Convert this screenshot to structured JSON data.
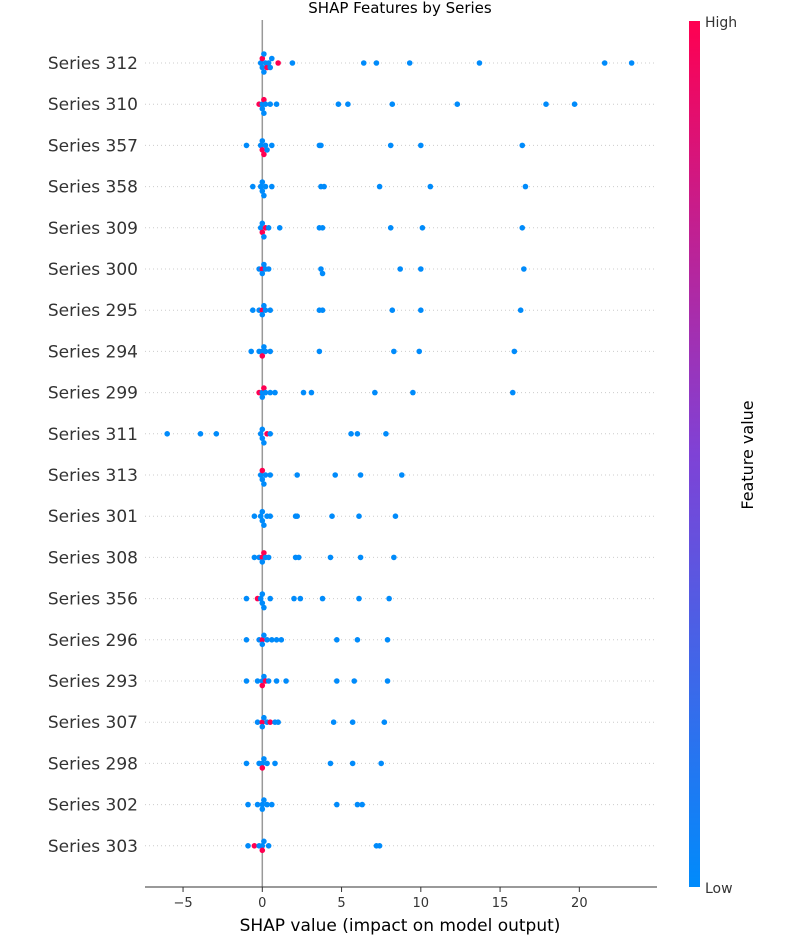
{
  "chart_data": {
    "type": "scatter",
    "title": "SHAP Features by Series",
    "xlabel": "SHAP value (impact on model output)",
    "ylabel": "",
    "xlim": [
      -7.4,
      24.9
    ],
    "xticks": [
      -5,
      0,
      5,
      10,
      15,
      20
    ],
    "xtick_labels": [
      "−5",
      "0",
      "5",
      "10",
      "15",
      "20"
    ],
    "colorbar": {
      "title": "Feature value",
      "high_label": "High",
      "low_label": "Low",
      "high_color": "#ff0051",
      "low_color": "#008bfb"
    },
    "series": [
      {
        "name": "Series 312",
        "values": [
          -0.1,
          0.0,
          0.0,
          0.1,
          0.1,
          0.2,
          0.3,
          0.4,
          0.5,
          0.6,
          1.0,
          1.9,
          6.4,
          7.2,
          9.3,
          13.7,
          21.6,
          23.3
        ],
        "high_flags": [
          0,
          0,
          1,
          0,
          0,
          0,
          1,
          0,
          0,
          0,
          1,
          0,
          0,
          0,
          0,
          0,
          0,
          0
        ]
      },
      {
        "name": "Series 310",
        "values": [
          -0.2,
          0.0,
          0.0,
          0.1,
          0.1,
          0.2,
          0.5,
          0.9,
          4.8,
          5.4,
          8.2,
          12.3,
          17.9,
          19.7
        ],
        "high_flags": [
          1,
          0,
          0,
          1,
          0,
          0,
          0,
          0,
          0,
          0,
          0,
          0,
          0,
          0
        ]
      },
      {
        "name": "Series 357",
        "values": [
          -1.0,
          -0.1,
          0.0,
          0.0,
          0.1,
          0.2,
          0.3,
          0.6,
          3.6,
          3.7,
          8.1,
          10.0,
          16.4
        ],
        "high_flags": [
          0,
          0,
          1,
          0,
          1,
          0,
          0,
          0,
          0,
          0,
          0,
          0,
          0
        ]
      },
      {
        "name": "Series 358",
        "values": [
          -0.6,
          -0.1,
          0.0,
          0.0,
          0.1,
          0.2,
          0.6,
          3.7,
          3.9,
          7.4,
          10.6,
          16.6
        ],
        "high_flags": [
          0,
          0,
          0,
          0,
          0,
          0,
          0,
          0,
          0,
          0,
          0,
          0
        ]
      },
      {
        "name": "Series 309",
        "values": [
          -0.1,
          0.0,
          0.0,
          0.1,
          0.2,
          0.4,
          1.1,
          3.6,
          3.8,
          8.1,
          10.1,
          16.4
        ],
        "high_flags": [
          0,
          1,
          0,
          0,
          1,
          0,
          0,
          0,
          0,
          0,
          0,
          0
        ]
      },
      {
        "name": "Series 300",
        "values": [
          -0.2,
          0.0,
          0.0,
          0.1,
          0.2,
          0.4,
          3.7,
          3.8,
          8.7,
          10.0,
          16.5
        ],
        "high_flags": [
          0,
          1,
          0,
          0,
          0,
          0,
          0,
          0,
          0,
          0,
          0
        ]
      },
      {
        "name": "Series 295",
        "values": [
          -0.6,
          -0.2,
          0.0,
          0.0,
          0.1,
          0.2,
          0.5,
          3.6,
          3.8,
          8.2,
          10.0,
          16.3
        ],
        "high_flags": [
          0,
          0,
          1,
          0,
          0,
          0,
          0,
          0,
          0,
          0,
          0,
          0
        ]
      },
      {
        "name": "Series 294",
        "values": [
          -0.7,
          -0.2,
          0.0,
          0.0,
          0.1,
          0.2,
          0.5,
          3.6,
          8.3,
          9.9,
          15.9
        ],
        "high_flags": [
          0,
          0,
          0,
          1,
          0,
          0,
          0,
          0,
          0,
          0,
          0
        ]
      },
      {
        "name": "Series 299",
        "values": [
          -0.2,
          0.0,
          0.0,
          0.1,
          0.2,
          0.5,
          0.8,
          2.6,
          3.1,
          7.1,
          9.5,
          15.8
        ],
        "high_flags": [
          1,
          0,
          0,
          1,
          0,
          0,
          0,
          0,
          0,
          0,
          0,
          0
        ]
      },
      {
        "name": "Series 311",
        "values": [
          -6.0,
          -3.9,
          -2.9,
          -0.1,
          0.0,
          0.0,
          0.1,
          0.3,
          0.5,
          5.6,
          6.0,
          7.8
        ],
        "high_flags": [
          0,
          0,
          0,
          0,
          0,
          0,
          0,
          1,
          0,
          0,
          0,
          0
        ]
      },
      {
        "name": "Series 313",
        "values": [
          -0.1,
          0.0,
          0.0,
          0.1,
          0.2,
          0.5,
          2.2,
          4.6,
          6.2,
          8.8
        ],
        "high_flags": [
          0,
          0,
          1,
          0,
          0,
          0,
          0,
          0,
          0,
          0
        ]
      },
      {
        "name": "Series 301",
        "values": [
          -0.5,
          -0.1,
          0.0,
          0.0,
          0.1,
          0.3,
          0.5,
          2.1,
          2.2,
          4.4,
          6.1,
          8.4
        ],
        "high_flags": [
          0,
          0,
          0,
          0,
          0,
          0,
          0,
          0,
          0,
          0,
          0,
          0
        ]
      },
      {
        "name": "Series 308",
        "values": [
          -0.5,
          -0.2,
          0.0,
          0.0,
          0.1,
          0.2,
          0.4,
          2.1,
          2.3,
          4.3,
          6.2,
          8.3
        ],
        "high_flags": [
          0,
          0,
          1,
          0,
          1,
          0,
          0,
          0,
          0,
          0,
          0,
          0
        ]
      },
      {
        "name": "Series 356",
        "values": [
          -1.0,
          -0.3,
          -0.1,
          0.0,
          0.0,
          0.1,
          0.5,
          2.0,
          2.4,
          3.8,
          6.1,
          8.0
        ],
        "high_flags": [
          0,
          1,
          0,
          0,
          0,
          0,
          0,
          0,
          0,
          0,
          0,
          0
        ]
      },
      {
        "name": "Series 296",
        "values": [
          -1.0,
          -0.2,
          0.0,
          0.0,
          0.1,
          0.3,
          0.6,
          0.9,
          1.2,
          4.7,
          6.0,
          7.9
        ],
        "high_flags": [
          0,
          0,
          1,
          0,
          0,
          0,
          0,
          0,
          0,
          0,
          0,
          0
        ]
      },
      {
        "name": "Series 293",
        "values": [
          -1.0,
          -0.3,
          0.0,
          0.0,
          0.1,
          0.2,
          0.4,
          0.9,
          1.5,
          4.7,
          5.8,
          7.9
        ],
        "high_flags": [
          0,
          0,
          0,
          1,
          0,
          1,
          0,
          0,
          0,
          0,
          0,
          0
        ]
      },
      {
        "name": "Series 307",
        "values": [
          -0.3,
          0.0,
          0.0,
          0.1,
          0.3,
          0.5,
          0.8,
          1.0,
          4.5,
          5.7,
          7.7
        ],
        "high_flags": [
          0,
          1,
          0,
          0,
          0,
          1,
          0,
          0,
          0,
          0,
          0
        ]
      },
      {
        "name": "Series 298",
        "values": [
          -1.0,
          -0.2,
          0.0,
          0.0,
          0.1,
          0.3,
          0.8,
          4.3,
          5.7,
          7.5
        ],
        "high_flags": [
          0,
          0,
          0,
          1,
          0,
          0,
          0,
          0,
          0,
          0
        ]
      },
      {
        "name": "Series 302",
        "values": [
          -0.9,
          -0.3,
          0.0,
          0.0,
          0.1,
          0.3,
          0.6,
          4.7,
          6.0,
          6.3
        ],
        "high_flags": [
          0,
          0,
          0,
          0,
          0,
          0,
          0,
          0,
          0,
          0
        ]
      },
      {
        "name": "Series 303",
        "values": [
          -0.9,
          -0.5,
          -0.2,
          0.0,
          0.0,
          0.1,
          0.4,
          7.2,
          7.4
        ],
        "high_flags": [
          0,
          1,
          0,
          0,
          1,
          0,
          0,
          0,
          0
        ]
      }
    ]
  }
}
